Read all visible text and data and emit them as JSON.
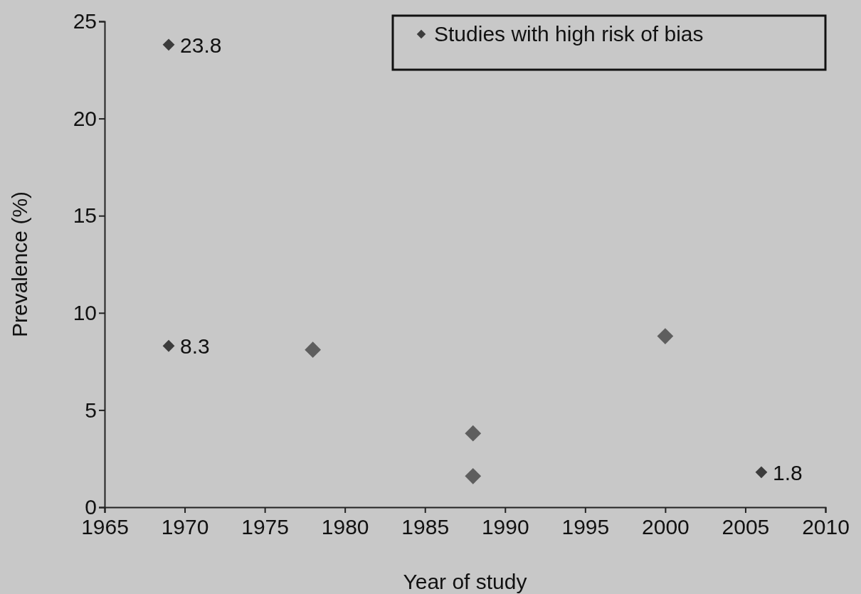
{
  "chart_data": {
    "type": "scatter",
    "xlabel": "Year of study",
    "ylabel": "Prevalence (%)",
    "xlim": [
      1965,
      2010
    ],
    "xticks": [
      1965,
      1970,
      1975,
      1980,
      1985,
      1990,
      1995,
      2000,
      2005,
      2010
    ],
    "ylim": [
      0,
      25
    ],
    "yticks": [
      0,
      5,
      10,
      15,
      20,
      25
    ],
    "grid": false,
    "legend": "top right",
    "marker": "diamond",
    "series": [
      {
        "name": "Studies with high risk of bias",
        "color": "#3c3c3c",
        "x": [
          1969,
          1969,
          2006
        ],
        "values": [
          23.8,
          8.3,
          1.8
        ],
        "value_labels": [
          "23.8",
          "8.3",
          "1.8"
        ]
      },
      {
        "color": "#5e5e5e",
        "x": [
          1978,
          1988,
          1988,
          2000
        ],
        "values": [
          8.1,
          3.8,
          1.6,
          8.8
        ]
      }
    ]
  }
}
